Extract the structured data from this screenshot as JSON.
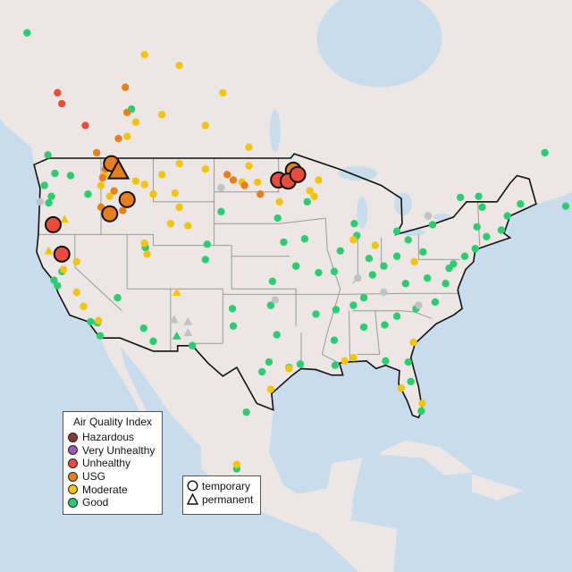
{
  "legend": {
    "title": "Air Quality Index",
    "categories": [
      {
        "key": "hazardous",
        "label": "Hazardous",
        "color": "#8b3a3a"
      },
      {
        "key": "very_unhealthy",
        "label": "Very Unhealthy",
        "color": "#9b59b6"
      },
      {
        "key": "unhealthy",
        "label": "Unhealthy",
        "color": "#e74c3c"
      },
      {
        "key": "usg",
        "label": "USG",
        "color": "#e67e22"
      },
      {
        "key": "moderate",
        "label": "Moderate",
        "color": "#f1c40f"
      },
      {
        "key": "good",
        "label": "Good",
        "color": "#2ecc71"
      }
    ],
    "no_data_color": "#bdc3c7",
    "shapes": [
      {
        "key": "temporary",
        "label": "temporary",
        "icon": "circle-icon"
      },
      {
        "key": "permanent",
        "label": "permanent",
        "icon": "triangle-icon"
      }
    ]
  },
  "highlighted_monitors": [
    {
      "lon": -115.8,
      "lat": 48.5,
      "category": "usg",
      "type": "temporary"
    },
    {
      "lon": -115.0,
      "lat": 47.8,
      "category": "usg",
      "type": "permanent"
    },
    {
      "lon": -114.0,
      "lat": 45.2,
      "category": "usg",
      "type": "temporary"
    },
    {
      "lon": -116.0,
      "lat": 43.9,
      "category": "usg",
      "type": "temporary"
    },
    {
      "lon": -122.5,
      "lat": 42.9,
      "category": "unhealthy",
      "type": "temporary"
    },
    {
      "lon": -121.5,
      "lat": 40.2,
      "category": "unhealthy",
      "type": "temporary"
    },
    {
      "lon": -94.9,
      "lat": 47.9,
      "category": "usg",
      "type": "temporary"
    },
    {
      "lon": -96.6,
      "lat": 47.0,
      "category": "unhealthy",
      "type": "temporary"
    },
    {
      "lon": -95.5,
      "lat": 46.9,
      "category": "unhealthy",
      "type": "temporary"
    },
    {
      "lon": -94.4,
      "lat": 47.5,
      "category": "unhealthy",
      "type": "temporary"
    }
  ],
  "monitors": [
    {
      "lon": -122.3,
      "lat": 47.6,
      "category": "good"
    },
    {
      "lon": -122.7,
      "lat": 45.5,
      "category": "good"
    },
    {
      "lon": -123.1,
      "lat": 49.3,
      "category": "good"
    },
    {
      "lon": -122.4,
      "lat": 37.8,
      "category": "good"
    },
    {
      "lon": -118.2,
      "lat": 34.0,
      "category": "good"
    },
    {
      "lon": -117.1,
      "lat": 32.7,
      "category": "good"
    },
    {
      "lon": -121.5,
      "lat": 38.6,
      "category": "good"
    },
    {
      "lon": -112.1,
      "lat": 33.4,
      "category": "good"
    },
    {
      "lon": -105.0,
      "lat": 39.7,
      "category": "good"
    },
    {
      "lon": -111.9,
      "lat": 40.8,
      "category": "good"
    },
    {
      "lon": -96.8,
      "lat": 32.8,
      "category": "good"
    },
    {
      "lon": -95.4,
      "lat": 29.8,
      "category": "good"
    },
    {
      "lon": -98.5,
      "lat": 29.4,
      "category": "good"
    },
    {
      "lon": -97.7,
      "lat": 30.3,
      "category": "good"
    },
    {
      "lon": -97.5,
      "lat": 35.5,
      "category": "good"
    },
    {
      "lon": -94.6,
      "lat": 39.1,
      "category": "good"
    },
    {
      "lon": -90.2,
      "lat": 38.6,
      "category": "good"
    },
    {
      "lon": -87.6,
      "lat": 41.9,
      "category": "good"
    },
    {
      "lon": -83.0,
      "lat": 42.3,
      "category": "good"
    },
    {
      "lon": -93.3,
      "lat": 45.0,
      "category": "good"
    },
    {
      "lon": -87.9,
      "lat": 43.0,
      "category": "good"
    },
    {
      "lon": -81.7,
      "lat": 41.5,
      "category": "good"
    },
    {
      "lon": -80.0,
      "lat": 40.4,
      "category": "good"
    },
    {
      "lon": -74.0,
      "lat": 40.7,
      "category": "good"
    },
    {
      "lon": -71.0,
      "lat": 42.4,
      "category": "good"
    },
    {
      "lon": -75.2,
      "lat": 40.0,
      "category": "good"
    },
    {
      "lon": -77.0,
      "lat": 38.9,
      "category": "good"
    },
    {
      "lon": -77.4,
      "lat": 37.5,
      "category": "good"
    },
    {
      "lon": -80.8,
      "lat": 35.2,
      "category": "good"
    },
    {
      "lon": -84.4,
      "lat": 33.7,
      "category": "good"
    },
    {
      "lon": -86.8,
      "lat": 36.2,
      "category": "good"
    },
    {
      "lon": -90.0,
      "lat": 35.1,
      "category": "good"
    },
    {
      "lon": -90.1,
      "lat": 30.0,
      "category": "good"
    },
    {
      "lon": -86.8,
      "lat": 33.5,
      "category": "good"
    },
    {
      "lon": -81.7,
      "lat": 30.3,
      "category": "good"
    },
    {
      "lon": -81.4,
      "lat": 28.5,
      "category": "good"
    },
    {
      "lon": -80.2,
      "lat": 25.8,
      "category": "good"
    },
    {
      "lon": -78.6,
      "lat": 35.8,
      "category": "good"
    },
    {
      "lon": -83.0,
      "lat": 40.0,
      "category": "good"
    },
    {
      "lon": -86.2,
      "lat": 39.8,
      "category": "good"
    },
    {
      "lon": -85.8,
      "lat": 38.3,
      "category": "good"
    },
    {
      "lon": -84.5,
      "lat": 39.1,
      "category": "good"
    },
    {
      "lon": -96.0,
      "lat": 41.3,
      "category": "good"
    },
    {
      "lon": -93.6,
      "lat": 41.6,
      "category": "good"
    },
    {
      "lon": -92.3,
      "lat": 34.7,
      "category": "good"
    },
    {
      "lon": -90.2,
      "lat": 32.3,
      "category": "good"
    },
    {
      "lon": -78.9,
      "lat": 42.9,
      "category": "good"
    },
    {
      "lon": -73.8,
      "lat": 42.7,
      "category": "good"
    },
    {
      "lon": -73.2,
      "lat": 44.5,
      "category": "good"
    },
    {
      "lon": -70.3,
      "lat": 43.7,
      "category": "good"
    },
    {
      "lon": -68.8,
      "lat": 44.8,
      "category": "good"
    },
    {
      "lon": -63.6,
      "lat": 44.6,
      "category": "good"
    },
    {
      "lon": -75.7,
      "lat": 45.4,
      "category": "good"
    },
    {
      "lon": -73.6,
      "lat": 45.5,
      "category": "good"
    },
    {
      "lon": -113.5,
      "lat": 53.5,
      "category": "good"
    },
    {
      "lon": -96.7,
      "lat": 43.5,
      "category": "good"
    },
    {
      "lon": -97.3,
      "lat": 37.7,
      "category": "good"
    },
    {
      "lon": -106.5,
      "lat": 31.8,
      "category": "good"
    },
    {
      "lon": -111.0,
      "lat": 32.2,
      "category": "good"
    },
    {
      "lon": -115.1,
      "lat": 36.2,
      "category": "good"
    },
    {
      "lon": -104.8,
      "lat": 41.1,
      "category": "good"
    },
    {
      "lon": -103.2,
      "lat": 44.1,
      "category": "good"
    },
    {
      "lon": -100.3,
      "lat": 25.7,
      "category": "good"
    },
    {
      "lon": -123.0,
      "lat": 44.9,
      "category": "good"
    },
    {
      "lon": -123.5,
      "lat": 46.5,
      "category": "good"
    },
    {
      "lon": -120.5,
      "lat": 47.4,
      "category": "good"
    },
    {
      "lon": -118.5,
      "lat": 45.7,
      "category": "good"
    },
    {
      "lon": -122.0,
      "lat": 37.3,
      "category": "good"
    },
    {
      "lon": -117.4,
      "lat": 33.9,
      "category": "good"
    },
    {
      "lon": -88.0,
      "lat": 35.5,
      "category": "good"
    },
    {
      "lon": -82.0,
      "lat": 37.5,
      "category": "good"
    },
    {
      "lon": -79.5,
      "lat": 38.0,
      "category": "good"
    },
    {
      "lon": -76.5,
      "lat": 39.3,
      "category": "good"
    },
    {
      "lon": -72.7,
      "lat": 41.8,
      "category": "good"
    },
    {
      "lon": -89.5,
      "lat": 40.5,
      "category": "good"
    },
    {
      "lon": -92.0,
      "lat": 38.5,
      "category": "good"
    },
    {
      "lon": -101.9,
      "lat": 35.2,
      "category": "good"
    },
    {
      "lon": -101.8,
      "lat": 33.6,
      "category": "good"
    },
    {
      "lon": -94.1,
      "lat": 30.1,
      "category": "good"
    },
    {
      "lon": -84.3,
      "lat": 30.4,
      "category": "good"
    },
    {
      "lon": -83.0,
      "lat": 34.5,
      "category": "good"
    },
    {
      "lon": -101.4,
      "lat": 20.5,
      "category": "good"
    },
    {
      "lon": -125.5,
      "lat": 60.5,
      "category": "good"
    },
    {
      "lon": -66.0,
      "lat": 49.5,
      "category": "good"
    },
    {
      "lon": -116.2,
      "lat": 43.6,
      "category": "moderate"
    },
    {
      "lon": -108.5,
      "lat": 45.8,
      "category": "moderate"
    },
    {
      "lon": -100.8,
      "lat": 46.8,
      "category": "moderate"
    },
    {
      "lon": -116.5,
      "lat": 47.5,
      "category": "moderate"
    },
    {
      "lon": -117.0,
      "lat": 46.5,
      "category": "moderate"
    },
    {
      "lon": -116.0,
      "lat": 45.5,
      "category": "moderate"
    },
    {
      "lon": -113.0,
      "lat": 46.9,
      "category": "moderate"
    },
    {
      "lon": -111.0,
      "lat": 45.7,
      "category": "moderate"
    },
    {
      "lon": -112.0,
      "lat": 46.6,
      "category": "moderate"
    },
    {
      "lon": -110.0,
      "lat": 47.5,
      "category": "moderate"
    },
    {
      "lon": -108.0,
      "lat": 48.5,
      "category": "moderate"
    },
    {
      "lon": -105.0,
      "lat": 48.0,
      "category": "moderate"
    },
    {
      "lon": -100.0,
      "lat": 48.3,
      "category": "moderate"
    },
    {
      "lon": -99.0,
      "lat": 46.8,
      "category": "moderate"
    },
    {
      "lon": -114.0,
      "lat": 51.0,
      "category": "moderate"
    },
    {
      "lon": -113.0,
      "lat": 52.3,
      "category": "moderate"
    },
    {
      "lon": -110.0,
      "lat": 53.0,
      "category": "moderate"
    },
    {
      "lon": -105.0,
      "lat": 52.0,
      "category": "moderate"
    },
    {
      "lon": -100.0,
      "lat": 50.0,
      "category": "moderate"
    },
    {
      "lon": -109.0,
      "lat": 43.0,
      "category": "moderate"
    },
    {
      "lon": -107.0,
      "lat": 42.8,
      "category": "moderate"
    },
    {
      "lon": -108.0,
      "lat": 44.5,
      "category": "moderate"
    },
    {
      "lon": -112.0,
      "lat": 41.2,
      "category": "moderate"
    },
    {
      "lon": -111.7,
      "lat": 40.2,
      "category": "moderate"
    },
    {
      "lon": -119.8,
      "lat": 39.5,
      "category": "moderate"
    },
    {
      "lon": -119.8,
      "lat": 36.7,
      "category": "moderate"
    },
    {
      "lon": -119.0,
      "lat": 35.4,
      "category": "moderate"
    },
    {
      "lon": -117.3,
      "lat": 34.1,
      "category": "moderate"
    },
    {
      "lon": -121.3,
      "lat": 38.8,
      "category": "moderate"
    },
    {
      "lon": -93.0,
      "lat": 46.0,
      "category": "moderate"
    },
    {
      "lon": -92.0,
      "lat": 47.0,
      "category": "moderate"
    },
    {
      "lon": -92.5,
      "lat": 45.5,
      "category": "moderate"
    },
    {
      "lon": -96.5,
      "lat": 45.0,
      "category": "moderate"
    },
    {
      "lon": -95.4,
      "lat": 29.7,
      "category": "moderate"
    },
    {
      "lon": -97.5,
      "lat": 27.8,
      "category": "moderate"
    },
    {
      "lon": -82.5,
      "lat": 27.9,
      "category": "moderate"
    },
    {
      "lon": -80.1,
      "lat": 26.5,
      "category": "moderate"
    },
    {
      "lon": -88.0,
      "lat": 30.7,
      "category": "moderate"
    },
    {
      "lon": -89.0,
      "lat": 30.4,
      "category": "moderate"
    },
    {
      "lon": -88.0,
      "lat": 41.5,
      "category": "moderate"
    },
    {
      "lon": -85.5,
      "lat": 41.0,
      "category": "moderate"
    },
    {
      "lon": -81.0,
      "lat": 39.5,
      "category": "moderate"
    },
    {
      "lon": -81.1,
      "lat": 32.1,
      "category": "moderate"
    },
    {
      "lon": -101.4,
      "lat": 20.9,
      "category": "moderate"
    },
    {
      "lon": -108.0,
      "lat": 57.5,
      "category": "moderate"
    },
    {
      "lon": -112.0,
      "lat": 58.5,
      "category": "moderate"
    },
    {
      "lon": -103.0,
      "lat": 55.0,
      "category": "moderate"
    },
    {
      "lon": -117.5,
      "lat": 49.5,
      "category": "usg"
    },
    {
      "lon": -116.5,
      "lat": 48.0,
      "category": "usg"
    },
    {
      "lon": -116.8,
      "lat": 47.2,
      "category": "usg"
    },
    {
      "lon": -115.5,
      "lat": 46.0,
      "category": "usg"
    },
    {
      "lon": -117.0,
      "lat": 44.5,
      "category": "usg"
    },
    {
      "lon": -114.5,
      "lat": 44.2,
      "category": "usg"
    },
    {
      "lon": -102.5,
      "lat": 47.5,
      "category": "usg"
    },
    {
      "lon": -101.8,
      "lat": 47.0,
      "category": "usg"
    },
    {
      "lon": -100.5,
      "lat": 46.5,
      "category": "usg"
    },
    {
      "lon": -98.7,
      "lat": 45.7,
      "category": "usg"
    },
    {
      "lon": -115.0,
      "lat": 50.8,
      "category": "usg"
    },
    {
      "lon": -114.0,
      "lat": 53.2,
      "category": "usg"
    },
    {
      "lon": -114.2,
      "lat": 55.5,
      "category": "usg"
    },
    {
      "lon": -122.0,
      "lat": 55.0,
      "category": "unhealthy"
    },
    {
      "lon": -121.5,
      "lat": 54.0,
      "category": "unhealthy"
    },
    {
      "lon": -118.8,
      "lat": 52.0,
      "category": "unhealthy"
    },
    {
      "lon": -96.0,
      "lat": 47.3,
      "category": "no_data"
    },
    {
      "lon": -80.5,
      "lat": 35.5,
      "category": "no_data"
    },
    {
      "lon": -84.5,
      "lat": 36.7,
      "category": "no_data"
    },
    {
      "lon": -87.5,
      "lat": 38.0,
      "category": "no_data"
    },
    {
      "lon": -103.2,
      "lat": 46.3,
      "category": "no_data"
    },
    {
      "lon": -124.0,
      "lat": 45.0,
      "category": "no_data"
    },
    {
      "lon": -97.0,
      "lat": 36.0,
      "category": "no_data"
    },
    {
      "lon": -79.4,
      "lat": 43.7,
      "category": "no_data"
    },
    {
      "lon": -108.6,
      "lat": 34.2,
      "category": "no_data",
      "type": "permanent"
    },
    {
      "lon": -107.0,
      "lat": 34.0,
      "category": "no_data",
      "type": "permanent"
    },
    {
      "lon": -107.0,
      "lat": 33.0,
      "category": "no_data",
      "type": "permanent"
    },
    {
      "lon": -108.3,
      "lat": 32.7,
      "category": "good",
      "type": "permanent"
    },
    {
      "lon": -108.3,
      "lat": 36.7,
      "category": "moderate",
      "type": "permanent"
    },
    {
      "lon": -121.2,
      "lat": 43.4,
      "category": "moderate",
      "type": "permanent"
    },
    {
      "lon": -123.0,
      "lat": 40.5,
      "category": "moderate",
      "type": "permanent"
    }
  ]
}
